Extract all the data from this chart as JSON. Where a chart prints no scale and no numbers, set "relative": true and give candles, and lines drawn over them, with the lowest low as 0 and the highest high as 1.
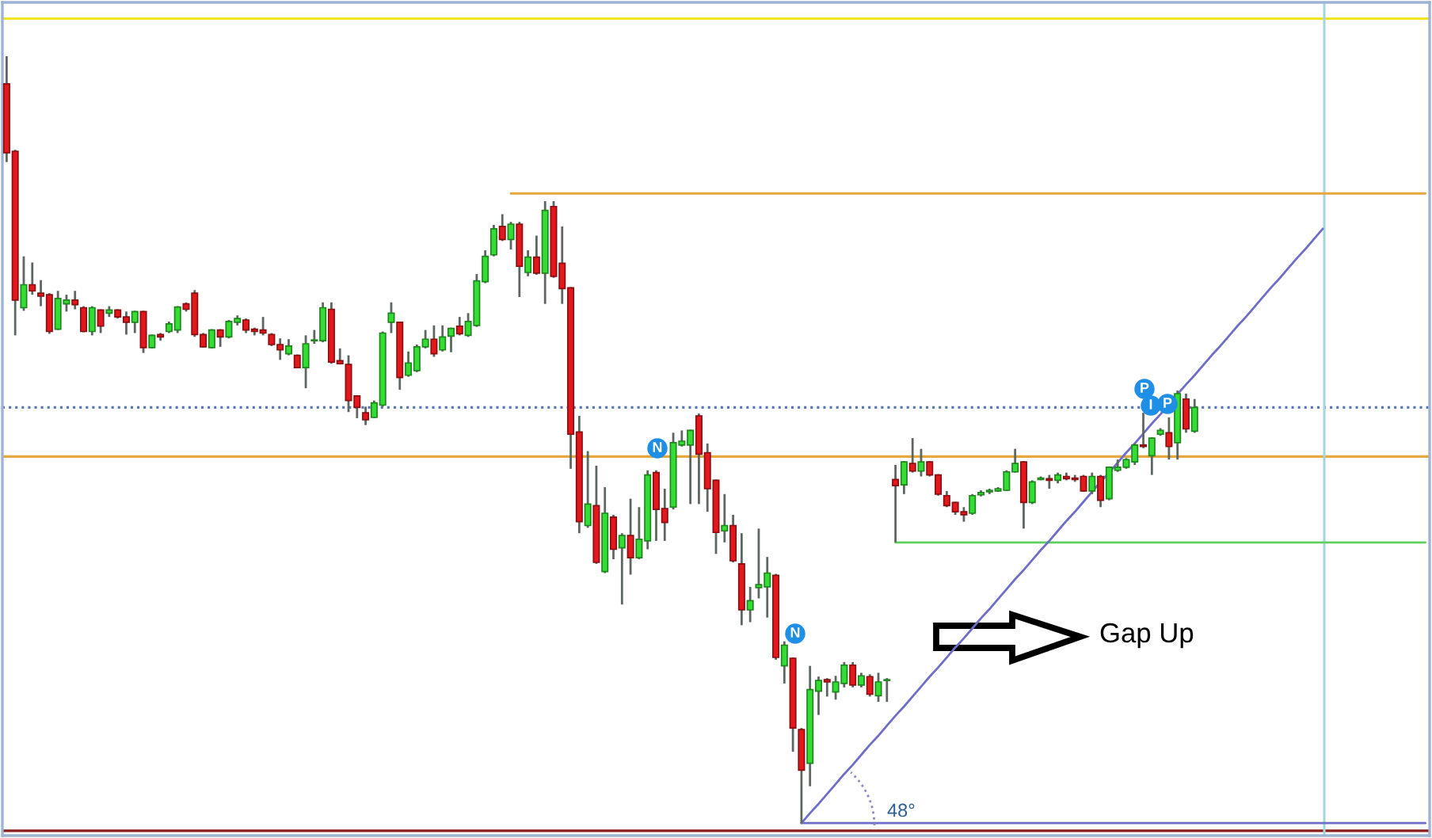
{
  "chart_data": {
    "type": "candlestick",
    "relative": true,
    "tick_labels": false,
    "categories": [
      null,
      null,
      null,
      null,
      null,
      null,
      null,
      null,
      null,
      null,
      null,
      null,
      null,
      null,
      null,
      null,
      null,
      null,
      null,
      null,
      null,
      null,
      null,
      null,
      null,
      null,
      null,
      null,
      null,
      null,
      null,
      null,
      null,
      null,
      null,
      null,
      null,
      null,
      null,
      null,
      null,
      null,
      null,
      null,
      null,
      null,
      null,
      null,
      null,
      null,
      null,
      null,
      null,
      null,
      null,
      null,
      null,
      null,
      null,
      null,
      null,
      null,
      null,
      null,
      null,
      null,
      null,
      null,
      null,
      null,
      null,
      null,
      null,
      null,
      null,
      null,
      null,
      null,
      null,
      null,
      null,
      null,
      null,
      null,
      null,
      null,
      null,
      null,
      null,
      null,
      null,
      null,
      null,
      null,
      null,
      null,
      null,
      null,
      null,
      null,
      null,
      null,
      null,
      null,
      null,
      null,
      null,
      null,
      null,
      null,
      null,
      null,
      null,
      null,
      null,
      null,
      null,
      null,
      null,
      null,
      null,
      null,
      null,
      null,
      null,
      null,
      null,
      null,
      null,
      null,
      null,
      null,
      null,
      null,
      null,
      null,
      null,
      null,
      null,
      null,
      null,
      null,
      null,
      null,
      null,
      null,
      null,
      null,
      null,
      null,
      null,
      null,
      null,
      null,
      null,
      null,
      null,
      null,
      null,
      null,
      null,
      null,
      null,
      null,
      null,
      null,
      null
    ],
    "ohlc": [
      [
        0.964,
        1.0,
        0.862,
        0.874
      ],
      [
        0.876,
        0.878,
        0.636,
        0.682
      ],
      [
        0.672,
        0.739,
        0.668,
        0.702
      ],
      [
        0.702,
        0.731,
        0.689,
        0.694
      ],
      [
        0.691,
        0.708,
        0.674,
        0.687
      ],
      [
        0.689,
        0.691,
        0.638,
        0.641
      ],
      [
        0.644,
        0.694,
        0.643,
        0.684
      ],
      [
        0.677,
        0.689,
        0.667,
        0.682
      ],
      [
        0.682,
        0.694,
        0.67,
        0.676
      ],
      [
        0.672,
        0.674,
        0.64,
        0.641
      ],
      [
        0.641,
        0.674,
        0.636,
        0.672
      ],
      [
        0.669,
        0.67,
        0.639,
        0.648
      ],
      [
        0.665,
        0.674,
        0.66,
        0.669
      ],
      [
        0.669,
        0.67,
        0.658,
        0.66
      ],
      [
        0.66,
        0.667,
        0.637,
        0.653
      ],
      [
        0.653,
        0.668,
        0.639,
        0.667
      ],
      [
        0.667,
        0.668,
        0.613,
        0.62
      ],
      [
        0.62,
        0.637,
        0.619,
        0.636
      ],
      [
        0.637,
        0.639,
        0.629,
        0.634
      ],
      [
        0.641,
        0.654,
        0.639,
        0.651
      ],
      [
        0.643,
        0.674,
        0.639,
        0.673
      ],
      [
        0.677,
        0.679,
        0.667,
        0.67
      ],
      [
        0.691,
        0.695,
        0.634,
        0.637
      ],
      [
        0.637,
        0.639,
        0.62,
        0.621
      ],
      [
        0.62,
        0.644,
        0.619,
        0.643
      ],
      [
        0.643,
        0.644,
        0.621,
        0.634
      ],
      [
        0.634,
        0.656,
        0.632,
        0.654
      ],
      [
        0.653,
        0.662,
        0.649,
        0.658
      ],
      [
        0.656,
        0.658,
        0.639,
        0.643
      ],
      [
        0.644,
        0.646,
        0.636,
        0.641
      ],
      [
        0.643,
        0.66,
        0.636,
        0.639
      ],
      [
        0.637,
        0.639,
        0.622,
        0.624
      ],
      [
        0.624,
        0.632,
        0.604,
        0.617
      ],
      [
        0.612,
        0.631,
        0.61,
        0.622
      ],
      [
        0.61,
        0.611,
        0.593,
        0.594
      ],
      [
        0.594,
        0.636,
        0.567,
        0.625
      ],
      [
        0.629,
        0.643,
        0.625,
        0.63
      ],
      [
        0.629,
        0.679,
        0.627,
        0.672
      ],
      [
        0.67,
        0.679,
        0.599,
        0.601
      ],
      [
        0.603,
        0.619,
        0.598,
        0.599
      ],
      [
        0.598,
        0.61,
        0.536,
        0.551
      ],
      [
        0.557,
        0.558,
        0.528,
        0.542
      ],
      [
        0.535,
        0.543,
        0.519,
        0.526
      ],
      [
        0.529,
        0.551,
        0.528,
        0.548
      ],
      [
        0.545,
        0.641,
        0.543,
        0.639
      ],
      [
        0.653,
        0.679,
        0.639,
        0.665
      ],
      [
        0.653,
        0.654,
        0.565,
        0.581
      ],
      [
        0.584,
        0.615,
        0.582,
        0.6
      ],
      [
        0.59,
        0.624,
        0.588,
        0.621
      ],
      [
        0.621,
        0.643,
        0.619,
        0.631
      ],
      [
        0.631,
        0.649,
        0.608,
        0.612
      ],
      [
        0.617,
        0.649,
        0.615,
        0.634
      ],
      [
        0.635,
        0.646,
        0.614,
        0.645
      ],
      [
        0.648,
        0.66,
        0.636,
        0.638
      ],
      [
        0.636,
        0.665,
        0.634,
        0.654
      ],
      [
        0.649,
        0.716,
        0.647,
        0.707
      ],
      [
        0.706,
        0.747,
        0.704,
        0.739
      ],
      [
        0.741,
        0.78,
        0.739,
        0.775
      ],
      [
        0.778,
        0.794,
        0.759,
        0.761
      ],
      [
        0.761,
        0.784,
        0.748,
        0.781
      ],
      [
        0.781,
        0.784,
        0.686,
        0.726
      ],
      [
        0.718,
        0.747,
        0.713,
        0.738
      ],
      [
        0.738,
        0.766,
        0.715,
        0.717
      ],
      [
        0.717,
        0.811,
        0.677,
        0.799
      ],
      [
        0.804,
        0.811,
        0.711,
        0.713
      ],
      [
        0.73,
        0.778,
        0.677,
        0.697
      ],
      [
        0.698,
        0.699,
        0.462,
        0.507
      ],
      [
        0.51,
        0.531,
        0.378,
        0.393
      ],
      [
        0.388,
        0.485,
        0.385,
        0.416
      ],
      [
        0.414,
        0.466,
        0.338,
        0.34
      ],
      [
        0.328,
        0.438,
        0.326,
        0.404
      ],
      [
        0.399,
        0.402,
        0.344,
        0.357
      ],
      [
        0.359,
        0.378,
        0.285,
        0.375
      ],
      [
        0.375,
        0.423,
        0.324,
        0.346
      ],
      [
        0.346,
        0.412,
        0.344,
        0.37
      ],
      [
        0.368,
        0.46,
        0.357,
        0.454
      ],
      [
        0.457,
        0.46,
        0.368,
        0.409
      ],
      [
        0.41,
        0.436,
        0.368,
        0.392
      ],
      [
        0.412,
        0.509,
        0.409,
        0.496
      ],
      [
        0.493,
        0.512,
        0.491,
        0.498
      ],
      [
        0.493,
        0.513,
        0.416,
        0.512
      ],
      [
        0.531,
        0.534,
        0.416,
        0.481
      ],
      [
        0.483,
        0.495,
        0.406,
        0.436
      ],
      [
        0.447,
        0.448,
        0.351,
        0.379
      ],
      [
        0.381,
        0.429,
        0.366,
        0.388
      ],
      [
        0.388,
        0.402,
        0.34,
        0.342
      ],
      [
        0.338,
        0.378,
        0.258,
        0.278
      ],
      [
        0.278,
        0.308,
        0.262,
        0.29
      ],
      [
        0.307,
        0.384,
        0.293,
        0.311
      ],
      [
        0.308,
        0.347,
        0.268,
        0.326
      ],
      [
        0.323,
        0.325,
        0.213,
        0.216
      ],
      [
        0.205,
        0.237,
        0.182,
        0.232
      ],
      [
        0.215,
        0.216,
        0.093,
        0.124
      ],
      [
        0.122,
        0.124,
        0.0,
        0.069
      ],
      [
        0.078,
        0.205,
        0.048,
        0.174
      ],
      [
        0.172,
        0.191,
        0.141,
        0.186
      ],
      [
        0.187,
        0.189,
        0.165,
        0.184
      ],
      [
        0.171,
        0.192,
        0.161,
        0.184
      ],
      [
        0.182,
        0.21,
        0.177,
        0.206
      ],
      [
        0.206,
        0.21,
        0.177,
        0.18
      ],
      [
        0.18,
        0.196,
        0.177,
        0.192
      ],
      [
        0.191,
        0.194,
        0.165,
        0.168
      ],
      [
        0.166,
        0.196,
        0.158,
        0.184
      ],
      [
        0.186,
        0.189,
        0.158,
        0.187
      ],
      [
        0.448,
        0.467,
        0.366,
        0.44
      ],
      [
        0.441,
        0.472,
        0.429,
        0.471
      ],
      [
        0.469,
        0.502,
        0.457,
        0.459
      ],
      [
        0.459,
        0.488,
        0.452,
        0.471
      ],
      [
        0.471,
        0.472,
        0.452,
        0.454
      ],
      [
        0.454,
        0.455,
        0.427,
        0.429
      ],
      [
        0.427,
        0.433,
        0.412,
        0.414
      ],
      [
        0.418,
        0.419,
        0.402,
        0.406
      ],
      [
        0.406,
        0.412,
        0.393,
        0.402
      ],
      [
        0.404,
        0.429,
        0.402,
        0.427
      ],
      [
        0.428,
        0.434,
        0.426,
        0.431
      ],
      [
        0.432,
        0.436,
        0.429,
        0.434
      ],
      [
        0.433,
        0.438,
        0.432,
        0.436
      ],
      [
        0.434,
        0.46,
        0.433,
        0.458
      ],
      [
        0.458,
        0.488,
        0.457,
        0.469
      ],
      [
        0.471,
        0.472,
        0.384,
        0.418
      ],
      [
        0.418,
        0.447,
        0.416,
        0.445
      ],
      [
        0.448,
        0.452,
        0.447,
        0.45
      ],
      [
        0.449,
        0.454,
        0.436,
        0.447
      ],
      [
        0.447,
        0.457,
        0.443,
        0.454
      ],
      [
        0.452,
        0.457,
        0.447,
        0.449
      ],
      [
        0.45,
        0.454,
        0.445,
        0.448
      ],
      [
        0.452,
        0.454,
        0.432,
        0.433
      ],
      [
        0.433,
        0.457,
        0.429,
        0.452
      ],
      [
        0.452,
        0.454,
        0.412,
        0.421
      ],
      [
        0.423,
        0.465,
        0.421,
        0.464
      ],
      [
        0.46,
        0.474,
        0.458,
        0.464
      ],
      [
        0.464,
        0.476,
        0.462,
        0.474
      ],
      [
        0.471,
        0.495,
        0.467,
        0.493
      ],
      [
        0.493,
        0.535,
        0.489,
        0.491
      ],
      [
        0.479,
        0.503,
        0.454,
        0.502
      ],
      [
        0.507,
        0.515,
        0.505,
        0.512
      ],
      [
        0.509,
        0.529,
        0.474,
        0.491
      ],
      [
        0.496,
        0.564,
        0.474,
        0.56
      ],
      [
        0.553,
        0.56,
        0.509,
        0.514
      ],
      [
        0.511,
        0.553,
        0.509,
        0.542
      ],
      null,
      null,
      null,
      null,
      null,
      null,
      null,
      null,
      null,
      null,
      null,
      null,
      null,
      null,
      null,
      null,
      null,
      null,
      null,
      null,
      null,
      null,
      null,
      null,
      null,
      null,
      null
    ],
    "colors": [
      "#e3171c",
      "#e3171c",
      "#33dd33",
      "#e3171c",
      "#e3171c",
      "#e3171c",
      "#33dd33",
      "#33dd33",
      "#e3171c",
      "#e3171c",
      "#33dd33",
      "#e3171c",
      "#33dd33",
      "#e3171c",
      "#e3171c",
      "#33dd33",
      "#e3171c",
      "#33dd33",
      "#e3171c",
      "#33dd33",
      "#33dd33",
      "#e3171c",
      "#e3171c",
      "#e3171c",
      "#33dd33",
      "#e3171c",
      "#33dd33",
      "#33dd33",
      "#e3171c",
      "#e3171c",
      "#e3171c",
      "#e3171c",
      "#e3171c",
      "#33dd33",
      "#e3171c",
      "#33dd33",
      "#33dd33",
      "#33dd33",
      "#e3171c",
      "#e3171c",
      "#e3171c",
      "#e3171c",
      "#e3171c",
      "#33dd33",
      "#33dd33",
      "#33dd33",
      "#e3171c",
      "#33dd33",
      "#33dd33",
      "#33dd33",
      "#e3171c",
      "#33dd33",
      "#33dd33",
      "#e3171c",
      "#33dd33",
      "#33dd33",
      "#33dd33",
      "#33dd33",
      "#e3171c",
      "#33dd33",
      "#e3171c",
      "#33dd33",
      "#e3171c",
      "#33dd33",
      "#e3171c",
      "#e3171c",
      "#e3171c",
      "#e3171c",
      "#33dd33",
      "#e3171c",
      "#33dd33",
      "#e3171c",
      "#33dd33",
      "#e3171c",
      "#33dd33",
      "#33dd33",
      "#e3171c",
      "#e3171c",
      "#33dd33",
      "#33dd33",
      "#33dd33",
      "#e3171c",
      "#e3171c",
      "#e3171c",
      "#33dd33",
      "#e3171c",
      "#e3171c",
      "#33dd33",
      "#33dd33",
      "#33dd33",
      "#e3171c",
      "#33dd33",
      "#e3171c",
      "#e3171c",
      "#33dd33",
      "#33dd33",
      "#e3171c",
      "#33dd33",
      "#33dd33",
      "#e3171c",
      "#33dd33",
      "#e3171c",
      "#33dd33",
      "#33dd33",
      "#e3171c",
      "#33dd33",
      "#e3171c",
      "#33dd33",
      "#e3171c",
      "#e3171c",
      "#e3171c",
      "#e3171c",
      "#e3171c",
      "#33dd33",
      "#33dd33",
      "#33dd33",
      "#33dd33",
      "#33dd33",
      "#33dd33",
      "#e3171c",
      "#33dd33",
      "#33dd33",
      "#e3171c",
      "#33dd33",
      "#e3171c",
      "#e3171c",
      "#e3171c",
      "#33dd33",
      "#e3171c",
      "#33dd33",
      "#33dd33",
      "#33dd33",
      "#33dd33",
      "#e3171c",
      "#33dd33",
      "#33dd33",
      "#e3171c",
      "#33dd33",
      "#e3171c",
      "#33dd33",
      null,
      null,
      null,
      null,
      null,
      null,
      null,
      null,
      null,
      null,
      null,
      null,
      null,
      null,
      null,
      null,
      null,
      null,
      null,
      null,
      null,
      null,
      null,
      null,
      null,
      null,
      null
    ],
    "series": [
      {
        "type": "line",
        "color": "#e6a83c",
        "values": [
          null,
          null,
          null,
          null,
          null,
          null,
          null,
          null,
          null,
          null,
          null,
          null,
          null,
          null,
          null,
          null,
          null,
          null,
          null,
          null,
          null,
          null,
          null,
          null,
          null,
          null,
          null,
          null,
          null,
          null,
          null,
          null,
          null,
          null,
          null,
          null,
          null,
          null,
          null,
          null,
          null,
          null,
          null,
          null,
          null,
          null,
          null,
          null,
          null,
          null,
          null,
          null,
          null,
          null,
          null,
          null,
          null,
          null,
          null,
          0.821,
          0.821,
          0.821,
          0.821,
          0.821,
          0.821,
          0.821,
          0.821,
          0.821,
          0.821,
          0.821,
          0.821,
          0.821,
          0.821,
          0.821,
          0.821,
          0.821,
          0.821,
          0.821,
          0.821,
          0.821,
          0.821,
          0.821,
          0.821,
          0.821,
          0.821,
          0.821,
          0.821,
          0.821,
          0.821,
          0.821,
          0.821,
          0.821,
          0.821,
          0.821,
          0.821,
          0.821,
          0.821,
          0.821,
          0.821,
          0.821,
          0.821,
          0.821,
          0.821,
          0.821,
          0.821,
          0.821,
          0.821,
          0.821,
          0.821,
          0.821,
          0.821,
          0.821,
          0.821,
          0.821,
          0.821,
          0.821,
          0.821,
          0.821,
          0.821,
          0.821,
          0.821,
          0.821,
          0.821,
          0.821,
          0.821,
          0.821,
          0.821,
          0.821,
          0.821,
          0.821,
          0.821,
          0.821,
          0.821,
          0.821,
          0.821,
          0.821,
          0.821,
          0.821,
          0.821,
          0.821,
          0.821,
          0.821,
          0.821,
          0.821,
          0.821,
          0.821,
          0.821,
          0.821,
          0.821,
          0.821,
          0.821,
          0.821,
          0.821,
          0.821,
          0.821,
          0.821,
          0.821,
          0.821,
          0.821,
          0.821,
          0.821,
          0.821,
          0.821,
          0.821,
          0.821,
          0.821,
          0.821
        ]
      },
      {
        "type": "line",
        "color": "#5fd05f",
        "values": [
          null,
          null,
          null,
          null,
          null,
          null,
          null,
          null,
          null,
          null,
          null,
          null,
          null,
          null,
          null,
          null,
          null,
          null,
          null,
          null,
          null,
          null,
          null,
          null,
          null,
          null,
          null,
          null,
          null,
          null,
          null,
          null,
          null,
          null,
          null,
          null,
          null,
          null,
          null,
          null,
          null,
          null,
          null,
          null,
          null,
          null,
          null,
          null,
          null,
          null,
          null,
          null,
          null,
          null,
          null,
          null,
          null,
          null,
          null,
          null,
          null,
          null,
          null,
          null,
          null,
          null,
          null,
          null,
          null,
          null,
          null,
          null,
          null,
          null,
          null,
          null,
          null,
          null,
          null,
          null,
          null,
          null,
          null,
          null,
          null,
          null,
          null,
          null,
          null,
          null,
          null,
          null,
          null,
          null,
          null,
          null,
          null,
          null,
          null,
          null,
          null,
          null,
          null,
          null,
          0.366,
          0.366,
          0.366,
          0.366,
          0.366,
          0.366,
          0.366,
          0.366,
          0.366,
          0.366,
          0.366,
          0.366,
          0.366,
          0.366,
          0.366,
          0.366,
          0.366,
          0.366,
          0.366,
          0.366,
          0.366,
          0.366,
          0.366,
          0.366,
          0.366,
          0.366,
          0.366,
          0.366,
          0.366,
          0.366,
          0.366,
          0.366,
          0.366,
          0.366,
          0.366,
          0.366,
          0.366,
          0.366,
          0.366,
          0.366,
          0.366,
          0.366,
          0.366,
          0.366,
          0.366,
          0.366,
          0.366,
          0.366,
          0.366,
          0.366,
          0.366,
          0.366,
          0.366,
          0.366,
          0.366,
          0.366,
          0.366,
          0.366,
          0.366,
          0.366,
          0.366,
          0.366,
          0.366
        ]
      },
      {
        "type": "line",
        "color": "#6e6ec8",
        "values": [
          null,
          null,
          null,
          null,
          null,
          null,
          null,
          null,
          null,
          null,
          null,
          null,
          null,
          null,
          null,
          null,
          null,
          null,
          null,
          null,
          null,
          null,
          null,
          null,
          null,
          null,
          null,
          null,
          null,
          null,
          null,
          null,
          null,
          null,
          null,
          null,
          null,
          null,
          null,
          null,
          null,
          null,
          null,
          null,
          null,
          null,
          null,
          null,
          null,
          null,
          null,
          null,
          null,
          null,
          null,
          null,
          null,
          null,
          null,
          null,
          null,
          null,
          null,
          null,
          null,
          null,
          null,
          null,
          null,
          null,
          null,
          null,
          null,
          null,
          null,
          null,
          null,
          null,
          null,
          null,
          null,
          null,
          null,
          null,
          null,
          null,
          null,
          null,
          null,
          null,
          null,
          null,
          null,
          0,
          0,
          0,
          0,
          0,
          0,
          0,
          0,
          0,
          0,
          0,
          0,
          0,
          0,
          0,
          0,
          0,
          0,
          0,
          0,
          0,
          0,
          0,
          0,
          0,
          0,
          0,
          0,
          0,
          0,
          0,
          0,
          0,
          0,
          0,
          0,
          0,
          0,
          0,
          0,
          0,
          0,
          0,
          0,
          0,
          0,
          0,
          0,
          0,
          0,
          0,
          0,
          0,
          0,
          0,
          0,
          0,
          0,
          0,
          0,
          0,
          0,
          0,
          0,
          0,
          0,
          0,
          0,
          0,
          0,
          0,
          0,
          0,
          0
        ]
      },
      {
        "type": "line",
        "color": "#6e6ec8",
        "values": [
          null,
          null,
          null,
          null,
          null,
          null,
          null,
          null,
          null,
          null,
          null,
          null,
          null,
          null,
          null,
          null,
          null,
          null,
          null,
          null,
          null,
          null,
          null,
          null,
          null,
          null,
          null,
          null,
          null,
          null,
          null,
          null,
          null,
          null,
          null,
          null,
          null,
          null,
          null,
          null,
          null,
          null,
          null,
          null,
          null,
          null,
          null,
          null,
          null,
          null,
          null,
          null,
          null,
          null,
          null,
          null,
          null,
          null,
          null,
          null,
          null,
          null,
          null,
          null,
          null,
          null,
          null,
          null,
          null,
          null,
          null,
          null,
          null,
          null,
          null,
          null,
          null,
          null,
          null,
          null,
          null,
          null,
          null,
          null,
          null,
          null,
          null,
          null,
          null,
          null,
          null,
          null,
          null,
          0,
          0.013,
          0.025,
          0.038,
          0.051,
          0.064,
          0.076,
          0.089,
          0.102,
          0.114,
          0.127,
          0.14,
          0.152,
          0.165,
          0.178,
          0.191,
          0.203,
          0.216,
          0.229,
          0.241,
          0.254,
          0.267,
          0.279,
          0.292,
          0.305,
          0.318,
          0.33,
          0.343,
          0.356,
          0.368,
          0.381,
          0.394,
          0.406,
          0.419,
          0.432,
          0.445,
          0.457,
          0.47,
          0.483,
          0.495,
          0.508,
          0.521,
          0.533,
          0.546,
          0.559,
          0.572,
          0.584,
          0.597,
          0.61,
          0.622,
          0.635,
          0.648,
          0.66,
          0.673,
          0.686,
          0.699,
          0.711,
          0.724,
          0.737,
          0.749,
          0.762,
          0.775,
          null,
          null,
          null,
          null,
          null,
          null,
          null,
          null,
          null,
          null,
          null,
          null
        ]
      }
    ],
    "ref_lines": [
      {
        "axis": "y",
        "value": 1.049,
        "color": "#f2e422"
      },
      {
        "axis": "y",
        "value": 0.542,
        "color": "#5b74b8",
        "line_style": "dotted"
      },
      {
        "axis": "y",
        "value": 0.478,
        "color": "#e6a83c"
      },
      {
        "axis": "y",
        "value": -0.01,
        "color": "#8b1c1c"
      }
    ],
    "annotations": [
      "Gap Up",
      "48°",
      "N",
      "N",
      "P",
      "I",
      "P"
    ]
  }
}
